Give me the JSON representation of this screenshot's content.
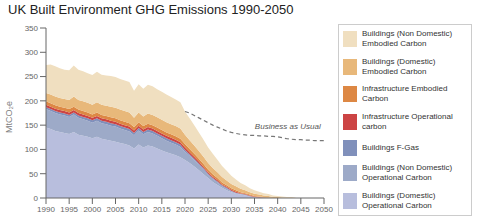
{
  "chart_data": {
    "type": "area",
    "title": "UK Built Environment GHG Emissions 1990-2050",
    "ylabel": "MtCO₂e",
    "stacked": true,
    "grid": false,
    "x": [
      1990,
      1991,
      1992,
      1993,
      1994,
      1995,
      1996,
      1997,
      1998,
      1999,
      2000,
      2001,
      2002,
      2003,
      2004,
      2005,
      2006,
      2007,
      2008,
      2009,
      2010,
      2011,
      2012,
      2013,
      2014,
      2015,
      2016,
      2017,
      2018,
      2019,
      2020,
      2021,
      2022,
      2023,
      2024,
      2025,
      2026,
      2027,
      2028,
      2029,
      2030,
      2031,
      2032,
      2033,
      2034,
      2035,
      2036,
      2037,
      2038,
      2039,
      2040,
      2041,
      2042,
      2043,
      2044,
      2045,
      2046,
      2047,
      2048,
      2049,
      2050
    ],
    "xlim": [
      1990,
      2050
    ],
    "xticks": [
      1990,
      1995,
      2000,
      2005,
      2010,
      2015,
      2020,
      2025,
      2030,
      2035,
      2040,
      2045,
      2050
    ],
    "ylim": [
      0,
      350
    ],
    "yticks": [
      0,
      50,
      100,
      150,
      200,
      250,
      300,
      350
    ],
    "series": [
      {
        "name": "Buildings (Domestic) Operational Carbon",
        "type": "area",
        "color": "#b8bedd",
        "values": [
          145,
          142,
          138,
          136,
          134,
          132,
          136,
          130,
          128,
          126,
          123,
          126,
          122,
          120,
          118,
          116,
          113,
          111,
          108,
          102,
          110,
          104,
          108,
          106,
          102,
          98,
          94,
          91,
          88,
          84,
          78,
          72,
          65,
          57,
          49,
          41,
          33,
          27,
          21,
          16,
          12,
          9,
          7,
          5,
          3,
          2,
          1,
          1,
          0,
          0,
          0,
          0,
          0,
          0,
          0,
          0,
          0,
          0,
          0,
          0,
          0
        ]
      },
      {
        "name": "Buildings (Non Domestic) Operational Carbon",
        "type": "area",
        "color": "#9daac8",
        "values": [
          38,
          37,
          37,
          36,
          36,
          35,
          36,
          35,
          34,
          33,
          32,
          33,
          32,
          32,
          31,
          31,
          30,
          29,
          29,
          27,
          29,
          27,
          28,
          27,
          26,
          25,
          24,
          23,
          22,
          21,
          17,
          15,
          13,
          11,
          9,
          7,
          6,
          5,
          3,
          3,
          2,
          1,
          1,
          1,
          0,
          0,
          0,
          0,
          0,
          0,
          0,
          0,
          0,
          0,
          0,
          0,
          0,
          0,
          0,
          0,
          0
        ]
      },
      {
        "name": "Buildings F-Gas",
        "type": "area",
        "color": "#8090bb",
        "values": [
          4,
          4,
          4,
          4,
          4,
          4,
          4,
          5,
          5,
          5,
          5,
          5,
          5,
          5,
          5,
          5,
          5,
          5,
          5,
          5,
          5,
          5,
          5,
          5,
          5,
          5,
          5,
          5,
          5,
          5,
          4,
          3,
          3,
          3,
          3,
          2,
          2,
          2,
          2,
          2,
          1,
          1,
          1,
          1,
          1,
          0,
          0,
          0,
          0,
          0,
          0,
          0,
          0,
          0,
          0,
          0,
          0,
          0,
          0,
          0,
          0
        ]
      },
      {
        "name": "Infrastructure Operational carbon",
        "type": "area",
        "color": "#cc4444",
        "values": [
          5,
          5,
          5,
          5,
          5,
          5,
          5,
          5,
          5,
          5,
          5,
          5,
          5,
          5,
          5,
          5,
          5,
          5,
          5,
          5,
          5,
          5,
          5,
          5,
          5,
          5,
          5,
          5,
          5,
          5,
          5,
          4,
          4,
          4,
          3,
          3,
          3,
          3,
          2,
          2,
          2,
          2,
          1,
          1,
          1,
          1,
          1,
          0,
          0,
          0,
          0,
          0,
          0,
          0,
          0,
          0,
          0,
          0,
          0,
          0,
          0
        ]
      },
      {
        "name": "Infrastructure Embodied Carbon",
        "type": "area",
        "color": "#dd8844",
        "values": [
          7,
          7,
          7,
          7,
          7,
          7,
          7,
          7,
          7,
          7,
          7,
          7,
          7,
          7,
          7,
          7,
          7,
          7,
          7,
          7,
          7,
          7,
          7,
          7,
          7,
          7,
          7,
          7,
          7,
          7,
          7,
          7,
          6,
          6,
          6,
          5,
          5,
          4,
          4,
          3,
          3,
          3,
          2,
          2,
          2,
          1,
          1,
          1,
          1,
          0,
          0,
          0,
          0,
          0,
          0,
          0,
          0,
          0,
          0,
          0,
          0
        ]
      },
      {
        "name": "Buildings (Domestic) Embodied Carbon",
        "type": "area",
        "color": "#e8b87a",
        "values": [
          17,
          18,
          18,
          18,
          18,
          19,
          21,
          20,
          20,
          20,
          20,
          21,
          21,
          21,
          22,
          22,
          22,
          22,
          22,
          19,
          20,
          20,
          21,
          21,
          21,
          21,
          21,
          21,
          21,
          21,
          19,
          18,
          17,
          16,
          15,
          14,
          13,
          12,
          11,
          10,
          9,
          8,
          7,
          6,
          5,
          5,
          4,
          3,
          3,
          2,
          2,
          1,
          1,
          1,
          0,
          0,
          0,
          0,
          0,
          0,
          0
        ]
      },
      {
        "name": "Buildings (Non Domestic) Embodied Carbon",
        "type": "area",
        "color": "#f0dfc0",
        "values": [
          58,
          62,
          62,
          61,
          60,
          61,
          64,
          62,
          62,
          61,
          61,
          63,
          62,
          62,
          63,
          63,
          63,
          63,
          63,
          56,
          58,
          57,
          59,
          59,
          58,
          58,
          57,
          56,
          55,
          54,
          48,
          45,
          42,
          38,
          35,
          32,
          29,
          26,
          23,
          20,
          17,
          14,
          12,
          10,
          8,
          7,
          6,
          5,
          4,
          3,
          2,
          2,
          1,
          1,
          0,
          0,
          0,
          0,
          0,
          0,
          0
        ]
      },
      {
        "type": "line",
        "line_style": "dashed",
        "color": "#777777",
        "values": [
          null,
          null,
          null,
          null,
          null,
          null,
          null,
          null,
          null,
          null,
          null,
          null,
          null,
          null,
          null,
          null,
          null,
          null,
          null,
          null,
          null,
          null,
          null,
          null,
          null,
          null,
          null,
          null,
          null,
          null,
          178,
          175,
          170,
          165,
          160,
          155,
          150,
          146,
          142,
          138,
          135,
          133,
          131,
          130,
          129,
          129,
          128,
          128,
          127,
          127,
          126,
          124,
          122,
          121,
          120,
          120,
          119,
          119,
          118,
          118,
          118
        ]
      }
    ],
    "annotations": [
      {
        "text": "Business as Usual",
        "x": 2034,
        "y": 148
      }
    ]
  }
}
